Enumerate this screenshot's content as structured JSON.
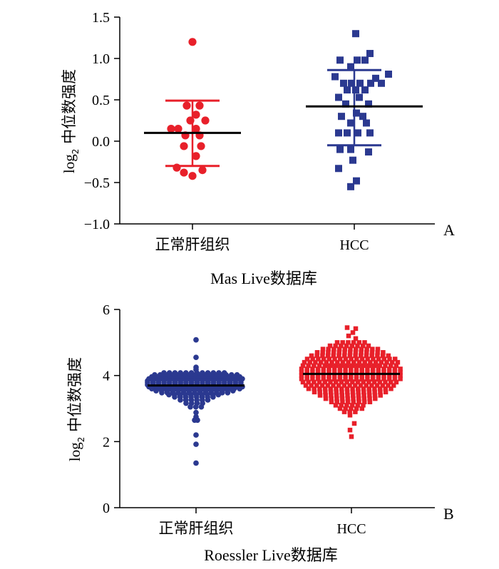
{
  "chart_data": [
    {
      "type": "scatter",
      "panel_label": "A",
      "title": "Mas Live数据库",
      "ylabel_main": "log",
      "ylabel_sub": "2",
      "ylabel_rest": " 中位数强度",
      "ylim": [
        -1.0,
        1.5
      ],
      "yticks": [
        "1.5",
        "1.0",
        "0.5",
        "0.0",
        "−0.5",
        "−1.0"
      ],
      "ytick_values": [
        1.5,
        1.0,
        0.5,
        0.0,
        -0.5,
        -1.0
      ],
      "categories": [
        "正常肝组织",
        "HCC"
      ],
      "series": [
        {
          "name": "正常肝组织",
          "color": "#e8202a",
          "marker": "circle",
          "mean": 0.1,
          "sd_low": -0.3,
          "sd_high": 0.49,
          "points": [
            {
              "dx": 0,
              "y": 1.2
            },
            {
              "dx": -0.08,
              "y": 0.43
            },
            {
              "dx": 0.1,
              "y": 0.43
            },
            {
              "dx": 0.05,
              "y": 0.32
            },
            {
              "dx": -0.03,
              "y": 0.25
            },
            {
              "dx": 0.18,
              "y": 0.25
            },
            {
              "dx": -0.3,
              "y": 0.15
            },
            {
              "dx": -0.2,
              "y": 0.15
            },
            {
              "dx": 0.05,
              "y": 0.15
            },
            {
              "dx": -0.1,
              "y": 0.07
            },
            {
              "dx": 0.1,
              "y": 0.07
            },
            {
              "dx": -0.12,
              "y": -0.06
            },
            {
              "dx": 0.12,
              "y": -0.06
            },
            {
              "dx": 0.05,
              "y": -0.18
            },
            {
              "dx": -0.22,
              "y": -0.32
            },
            {
              "dx": 0.14,
              "y": -0.35
            },
            {
              "dx": -0.12,
              "y": -0.38
            },
            {
              "dx": 0.0,
              "y": -0.42
            }
          ]
        },
        {
          "name": "HCC",
          "color": "#2b3990",
          "marker": "square",
          "mean": 0.42,
          "sd_low": -0.05,
          "sd_high": 0.86,
          "points": [
            {
              "dx": 0.02,
              "y": 1.3
            },
            {
              "dx": 0.22,
              "y": 1.06
            },
            {
              "dx": -0.2,
              "y": 0.98
            },
            {
              "dx": 0.04,
              "y": 0.98
            },
            {
              "dx": 0.15,
              "y": 0.98
            },
            {
              "dx": -0.05,
              "y": 0.9
            },
            {
              "dx": 0.48,
              "y": 0.81
            },
            {
              "dx": -0.27,
              "y": 0.78
            },
            {
              "dx": 0.3,
              "y": 0.76
            },
            {
              "dx": -0.15,
              "y": 0.7
            },
            {
              "dx": -0.04,
              "y": 0.7
            },
            {
              "dx": 0.08,
              "y": 0.7
            },
            {
              "dx": 0.23,
              "y": 0.7
            },
            {
              "dx": 0.38,
              "y": 0.7
            },
            {
              "dx": -0.1,
              "y": 0.62
            },
            {
              "dx": 0.02,
              "y": 0.62
            },
            {
              "dx": 0.15,
              "y": 0.62
            },
            {
              "dx": -0.22,
              "y": 0.53
            },
            {
              "dx": 0.07,
              "y": 0.53
            },
            {
              "dx": -0.12,
              "y": 0.45
            },
            {
              "dx": 0.2,
              "y": 0.45
            },
            {
              "dx": 0.03,
              "y": 0.34
            },
            {
              "dx": -0.18,
              "y": 0.3
            },
            {
              "dx": 0.12,
              "y": 0.3
            },
            {
              "dx": -0.05,
              "y": 0.22
            },
            {
              "dx": 0.17,
              "y": 0.22
            },
            {
              "dx": -0.22,
              "y": 0.1
            },
            {
              "dx": -0.1,
              "y": 0.1
            },
            {
              "dx": 0.05,
              "y": 0.1
            },
            {
              "dx": 0.22,
              "y": 0.1
            },
            {
              "dx": -0.2,
              "y": -0.1
            },
            {
              "dx": -0.05,
              "y": -0.1
            },
            {
              "dx": 0.2,
              "y": -0.13
            },
            {
              "dx": -0.02,
              "y": -0.23
            },
            {
              "dx": -0.22,
              "y": -0.33
            },
            {
              "dx": 0.03,
              "y": -0.48
            },
            {
              "dx": -0.05,
              "y": -0.55
            }
          ]
        }
      ]
    },
    {
      "type": "scatter",
      "panel_label": "B",
      "title": "Roessler Live数据库",
      "ylabel_main": "log",
      "ylabel_sub": "2",
      "ylabel_rest": " 中位数强度",
      "ylim": [
        0,
        6
      ],
      "yticks": [
        "6",
        "4",
        "2",
        "0"
      ],
      "ytick_values": [
        6,
        4,
        2,
        0
      ],
      "categories": [
        "正常肝组织",
        "HCC"
      ],
      "series": [
        {
          "name": "正常肝组织",
          "color": "#2b3990",
          "marker": "circle",
          "mean": 3.7,
          "sd_low": 3.55,
          "sd_high": 3.88,
          "points": [
            {
              "dx": 0,
              "y": 5.08
            },
            {
              "dx": 0,
              "y": 4.55
            },
            {
              "dx": 0,
              "y": 4.25
            },
            {
              "dx": 0,
              "y": 4.18
            },
            {
              "dx": 0,
              "y": 2.88
            },
            {
              "dx": 0,
              "y": 2.75
            },
            {
              "dx": 0.02,
              "y": 2.65
            },
            {
              "dx": -0.02,
              "y": 2.65
            },
            {
              "dx": 0,
              "y": 2.2
            },
            {
              "dx": 0,
              "y": 1.92
            },
            {
              "dx": 0,
              "y": 1.35
            }
          ],
          "cloud": {
            "rows": [
              {
                "y": 4.08,
                "w": 0.45
              },
              {
                "y": 4.02,
                "w": 0.58
              },
              {
                "y": 3.96,
                "w": 0.62
              },
              {
                "y": 3.9,
                "w": 0.66
              },
              {
                "y": 3.84,
                "w": 0.68
              },
              {
                "y": 3.78,
                "w": 0.68
              },
              {
                "y": 3.72,
                "w": 0.68
              },
              {
                "y": 3.66,
                "w": 0.66
              },
              {
                "y": 3.6,
                "w": 0.62
              },
              {
                "y": 3.54,
                "w": 0.56
              },
              {
                "y": 3.48,
                "w": 0.48
              },
              {
                "y": 3.42,
                "w": 0.38
              },
              {
                "y": 3.35,
                "w": 0.3
              },
              {
                "y": 3.26,
                "w": 0.22
              },
              {
                "y": 3.16,
                "w": 0.14
              },
              {
                "y": 3.05,
                "w": 0.08
              }
            ]
          }
        },
        {
          "name": "HCC",
          "color": "#e8202a",
          "marker": "square",
          "mean": 4.05,
          "sd_low": 3.85,
          "sd_high": 4.3,
          "points": [
            {
              "dx": -0.06,
              "y": 5.45
            },
            {
              "dx": 0.06,
              "y": 5.42
            },
            {
              "dx": 0.02,
              "y": 5.3
            },
            {
              "dx": -0.04,
              "y": 5.2
            },
            {
              "dx": 0.06,
              "y": 5.12
            },
            {
              "dx": -0.02,
              "y": 2.8
            },
            {
              "dx": 0.04,
              "y": 2.55
            },
            {
              "dx": -0.02,
              "y": 2.35
            },
            {
              "dx": 0.0,
              "y": 2.15
            }
          ],
          "cloud": {
            "rows": [
              {
                "y": 5.0,
                "w": 0.2
              },
              {
                "y": 4.9,
                "w": 0.3
              },
              {
                "y": 4.8,
                "w": 0.4
              },
              {
                "y": 4.7,
                "w": 0.48
              },
              {
                "y": 4.6,
                "w": 0.56
              },
              {
                "y": 4.5,
                "w": 0.62
              },
              {
                "y": 4.4,
                "w": 0.66
              },
              {
                "y": 4.3,
                "w": 0.68
              },
              {
                "y": 4.2,
                "w": 0.7
              },
              {
                "y": 4.1,
                "w": 0.7
              },
              {
                "y": 4.0,
                "w": 0.7
              },
              {
                "y": 3.9,
                "w": 0.7
              },
              {
                "y": 3.8,
                "w": 0.68
              },
              {
                "y": 3.7,
                "w": 0.64
              },
              {
                "y": 3.6,
                "w": 0.6
              },
              {
                "y": 3.5,
                "w": 0.52
              },
              {
                "y": 3.4,
                "w": 0.44
              },
              {
                "y": 3.3,
                "w": 0.36
              },
              {
                "y": 3.2,
                "w": 0.28
              },
              {
                "y": 3.1,
                "w": 0.22
              },
              {
                "y": 3.0,
                "w": 0.16
              },
              {
                "y": 2.9,
                "w": 0.1
              }
            ]
          }
        }
      ]
    }
  ]
}
